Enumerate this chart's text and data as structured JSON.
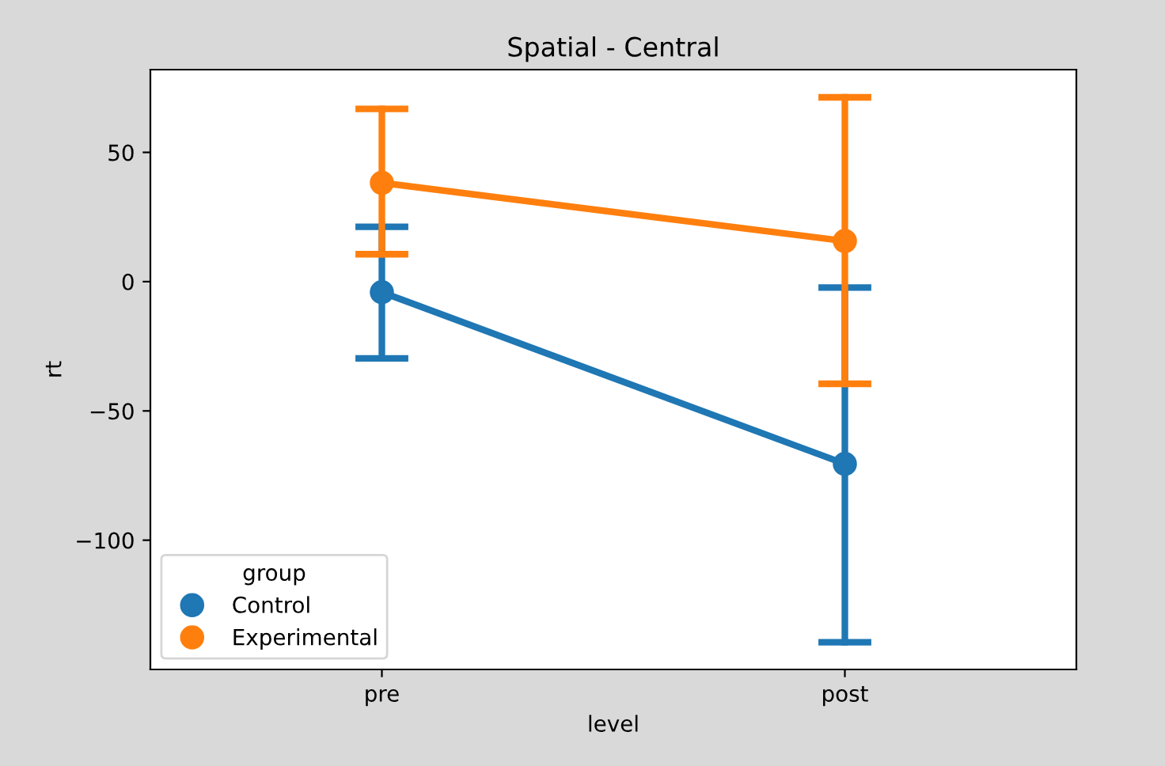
{
  "chart_data": {
    "type": "line",
    "title": "Spatial - Central",
    "xlabel": "level",
    "ylabel": "rt",
    "legend_title": "group",
    "legend": "bottom left",
    "marker": "circle",
    "line_style": "solid",
    "grid": false,
    "categories": [
      "pre",
      "post"
    ],
    "series": [
      {
        "name": "Control",
        "color": "#1f77b4",
        "values": [
          -4.1,
          -70.5
        ],
        "errors": [
          [
            -29.7,
            21.2
          ],
          [
            -139.5,
            -2.3
          ]
        ]
      },
      {
        "name": "Experimental",
        "color": "#ff7f0e",
        "values": [
          38.2,
          15.7
        ],
        "errors": [
          [
            10.6,
            66.8
          ],
          [
            -39.5,
            71.3
          ]
        ]
      }
    ],
    "ylim": [
      -150,
      82
    ],
    "yticks": [
      {
        "value": -100,
        "label": "−100"
      },
      {
        "value": -50,
        "label": "−50"
      },
      0,
      50
    ]
  }
}
